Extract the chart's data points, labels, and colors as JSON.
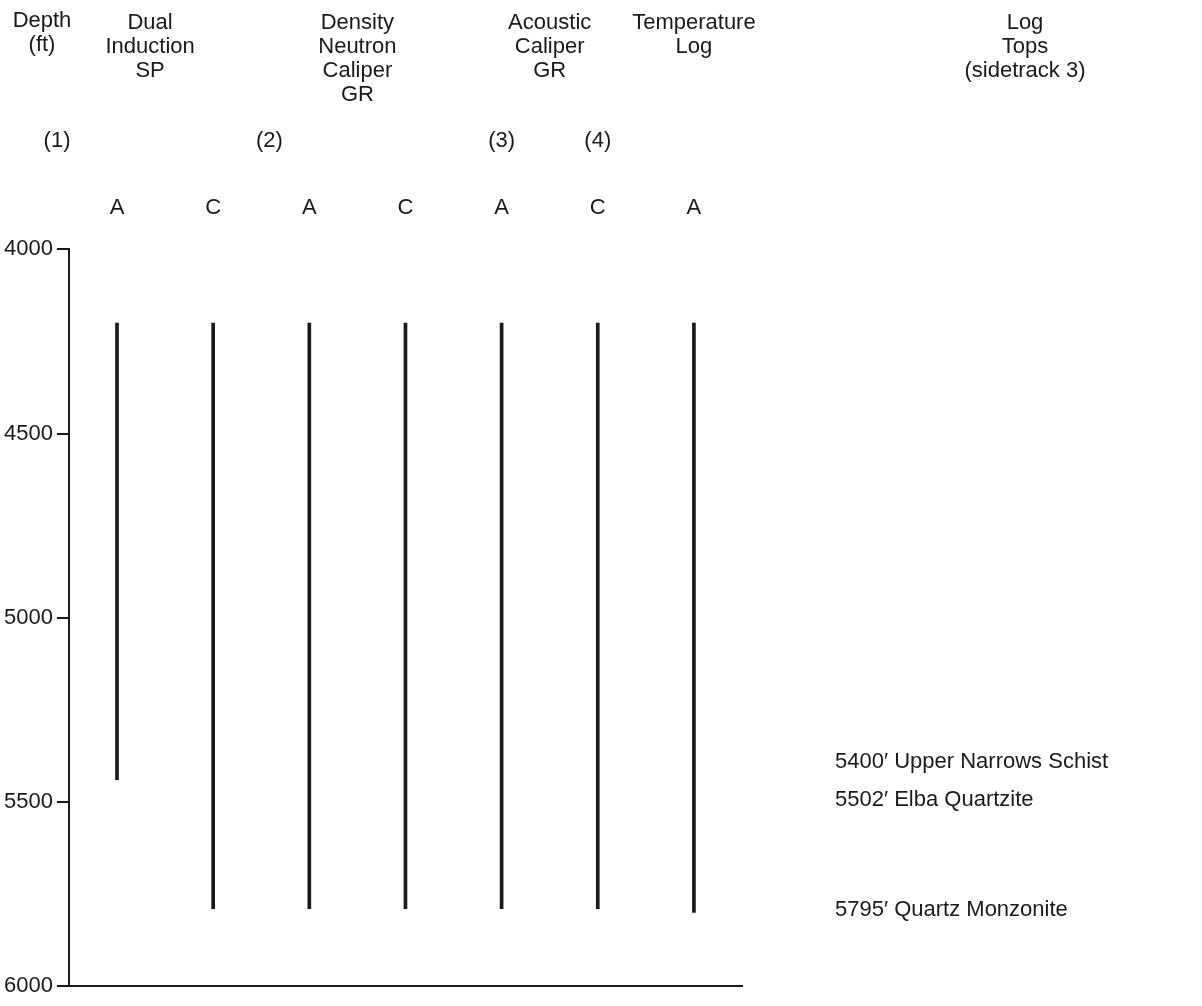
{
  "chart_data": {
    "type": "bar",
    "categories": [
      "A",
      "C",
      "A",
      "C",
      "A",
      "C",
      "A"
    ],
    "base": [
      4200,
      4200,
      4200,
      4200,
      4200,
      4200,
      4200
    ],
    "values": [
      1240,
      1590,
      1590,
      1590,
      1590,
      1590,
      1600
    ],
    "color": "#1a1a1a",
    "ylim": [
      6000,
      4000
    ],
    "yticks": [
      4000,
      4500,
      5000,
      5500,
      6000
    ],
    "grid": false,
    "legend": false,
    "annotations": [
      "Dual\nInduction\nSP",
      "Density\nNeutron\nCaliper\nGR",
      "Acoustic\nCaliper\nGR",
      "Temperature\nLog",
      "Log\nTops\n(sidetrack 3)",
      "(1)",
      "(2)",
      "(3)",
      "(4)",
      "5400′ Upper Narrows Schist",
      "5502′ Elba Quartzite",
      "5795′ Quartz Monzonite",
      "Depth\n(ft)"
    ]
  }
}
